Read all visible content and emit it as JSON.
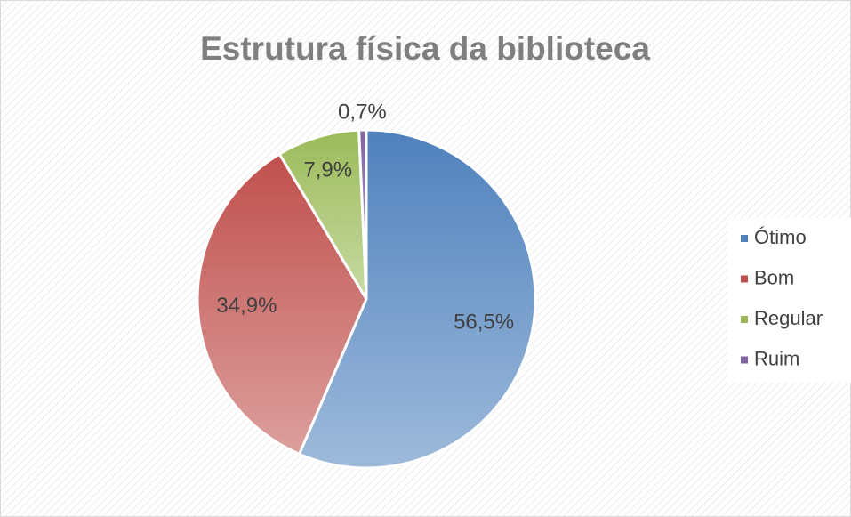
{
  "chart_data": {
    "type": "pie",
    "title": "Estrutura física da biblioteca",
    "categories": [
      "Ótimo",
      "Bom",
      "Regular",
      "Ruim"
    ],
    "values": [
      56.5,
      34.9,
      7.9,
      0.7
    ],
    "value_labels": [
      "56,5%",
      "34,9%",
      "7,9%",
      "0,7%"
    ],
    "colors": [
      "#4f81bd",
      "#c0504d",
      "#9bbb59",
      "#8064a2"
    ],
    "legend": "right"
  }
}
